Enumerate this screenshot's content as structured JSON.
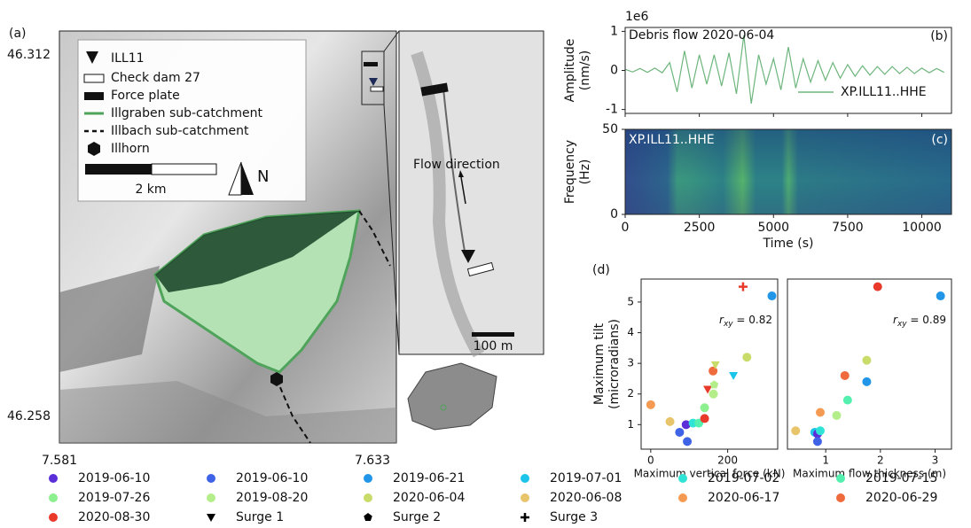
{
  "figure": {
    "panel_label": "(a)"
  },
  "map": {
    "lat_labels": [
      "46.312",
      "46.258"
    ],
    "lon_labels": [
      "7.581",
      "7.633"
    ],
    "legend": [
      "ILL11",
      "Check dam 27",
      "Force plate",
      "Illgraben sub-catchment",
      "Illbach sub-catchment",
      "Illhorn"
    ],
    "scale_label": "2 km",
    "north_label": "N",
    "inset_annotation": "Flow direction",
    "inset_scale_label": "100 m"
  },
  "chart_data": [
    {
      "type": "line",
      "panel_label": "(b)",
      "annotation": "Debris flow 2020-06-04",
      "offset_label": "1e6",
      "ylabel": [
        "Amplitude",
        "(nm/s)"
      ],
      "x": [
        0,
        250,
        500,
        750,
        1000,
        1250,
        1500,
        1750,
        2000,
        2250,
        2500,
        2750,
        3000,
        3250,
        3500,
        3750,
        4000,
        4250,
        4500,
        4750,
        5000,
        5250,
        5500,
        5750,
        6000,
        6250,
        6500,
        6750,
        7000,
        7250,
        7500,
        7750,
        8000,
        8250,
        8500,
        8750,
        9000,
        9250,
        9500,
        9750,
        10000,
        10250,
        10500,
        10750
      ],
      "series": [
        {
          "name": "XP.ILL11..HHE",
          "color": "#6db57c",
          "values": [
            0.03,
            -0.04,
            0.05,
            -0.05,
            0.06,
            -0.06,
            0.2,
            -0.55,
            0.5,
            -0.45,
            0.4,
            -0.35,
            0.4,
            -0.4,
            0.45,
            -0.6,
            0.9,
            -0.85,
            0.4,
            -0.35,
            0.3,
            -0.5,
            0.6,
            -0.45,
            0.3,
            -0.3,
            0.25,
            -0.25,
            0.2,
            -0.2,
            0.15,
            -0.15,
            0.12,
            -0.12,
            0.1,
            -0.1,
            0.1,
            -0.08,
            0.08,
            -0.08,
            0.06,
            -0.06,
            0.05,
            -0.05
          ]
        }
      ],
      "xlim": [
        0,
        11000
      ],
      "ylim": [
        -1.1,
        1.1
      ],
      "yticks": [
        -1,
        0,
        1
      ]
    },
    {
      "type": "heatmap",
      "panel_label": "(c)",
      "annotation": "XP.ILL11..HHE",
      "xlabel": "Time (s)",
      "ylabel": [
        "Frequency",
        "(Hz)"
      ],
      "xlim": [
        0,
        11000
      ],
      "ylim": [
        0,
        50
      ],
      "xticks": [
        0,
        2500,
        5000,
        7500,
        10000
      ],
      "yticks": [
        0,
        50
      ]
    },
    {
      "type": "scatter",
      "panel_label": "(d)",
      "xlabel": "Maximum vertical force (kN)",
      "ylabel": [
        "Maximum tilt",
        "(microradians)"
      ],
      "annotation": {
        "symbol": "r",
        "subscript": "xy",
        "text": " = 0.82"
      },
      "xlim": [
        -25,
        330
      ],
      "ylim": [
        0.2,
        5.75
      ],
      "xticks": [
        0,
        200
      ],
      "yticks": [
        1,
        2,
        3,
        4,
        5
      ],
      "x": [
        0,
        50,
        75,
        92,
        95,
        110,
        125,
        140,
        140,
        148,
        162,
        163,
        165,
        168,
        215,
        240,
        250,
        315
      ],
      "values": [
        1.65,
        1.1,
        0.75,
        1.0,
        0.45,
        1.05,
        1.05,
        1.55,
        1.2,
        2.15,
        2.75,
        2.0,
        2.3,
        2.95,
        2.6,
        5.5,
        3.2,
        5.2
      ],
      "colors": [
        "#f49a52",
        "#e8c46a",
        "#3f63e6",
        "#5a2fd8",
        "#3f63e6",
        "#2fe4d6",
        "#55f0b0",
        "#8cf08f",
        "#e8392a",
        "#e8392a",
        "#ef6a3c",
        "#b4ee8a",
        "#b4ee8a",
        "#c9dc6a",
        "#1cc4ea",
        "#e8392a",
        "#c9dc6a",
        "#2196e8"
      ],
      "markers": [
        "circle",
        "circle",
        "circle",
        "circle",
        "circle",
        "circle",
        "circle",
        "circle",
        "circle",
        "triangle",
        "circle",
        "circle",
        "pentagon",
        "triangle",
        "triangle",
        "plus",
        "circle",
        "circle"
      ]
    },
    {
      "type": "scatter",
      "xlabel": "Maximum flow thickness (m)",
      "annotation": {
        "symbol": "r",
        "subscript": "xy",
        "text": " = 0.89"
      },
      "xlim": [
        0.3,
        3.3
      ],
      "ylim": [
        0.2,
        5.75
      ],
      "xticks": [
        1,
        2,
        3
      ],
      "x": [
        0.45,
        0.8,
        0.85,
        0.85,
        0.9,
        0.9,
        1.2,
        1.4,
        1.35,
        1.75,
        1.75,
        1.95,
        3.1
      ],
      "values": [
        0.8,
        0.75,
        0.7,
        0.45,
        0.8,
        1.4,
        1.3,
        1.8,
        2.6,
        2.4,
        3.1,
        5.5,
        5.2
      ],
      "colors": [
        "#e8c46a",
        "#1cc4ea",
        "#5a2fd8",
        "#3f63e6",
        "#2fe4d6",
        "#f49a52",
        "#b4ee8a",
        "#55f0b0",
        "#ef6a3c",
        "#2196e8",
        "#c9dc6a",
        "#e8392a",
        "#2196e8"
      ],
      "markers": [
        "circle",
        "circle",
        "circle",
        "circle",
        "circle",
        "circle",
        "circle",
        "circle",
        "circle",
        "circle",
        "circle",
        "circle",
        "circle"
      ]
    }
  ],
  "legend": {
    "labels": [
      "2019-06-10",
      "2019-06-10",
      "2019-06-21",
      "2019-07-01",
      "2019-07-02",
      "2019-07-15",
      "2019-07-26",
      "2019-08-20",
      "2020-06-04",
      "2020-06-08",
      "2020-06-17",
      "2020-06-29",
      "2020-08-30",
      "Surge 1",
      "Surge 2",
      "Surge 3"
    ],
    "colors": [
      "#5a2fd8",
      "#3f63e6",
      "#2196e8",
      "#1cc4ea",
      "#2fe4d6",
      "#55f0b0",
      "#8cf08f",
      "#b4ee8a",
      "#c9dc6a",
      "#e8c46a",
      "#f49a52",
      "#ef6a3c",
      "#e8392a",
      "#000000",
      "#000000",
      "#000000"
    ],
    "markers": [
      "circle",
      "circle",
      "circle",
      "circle",
      "circle",
      "circle",
      "circle",
      "circle",
      "circle",
      "circle",
      "circle",
      "circle",
      "circle",
      "triangle",
      "pentagon",
      "plus"
    ]
  }
}
